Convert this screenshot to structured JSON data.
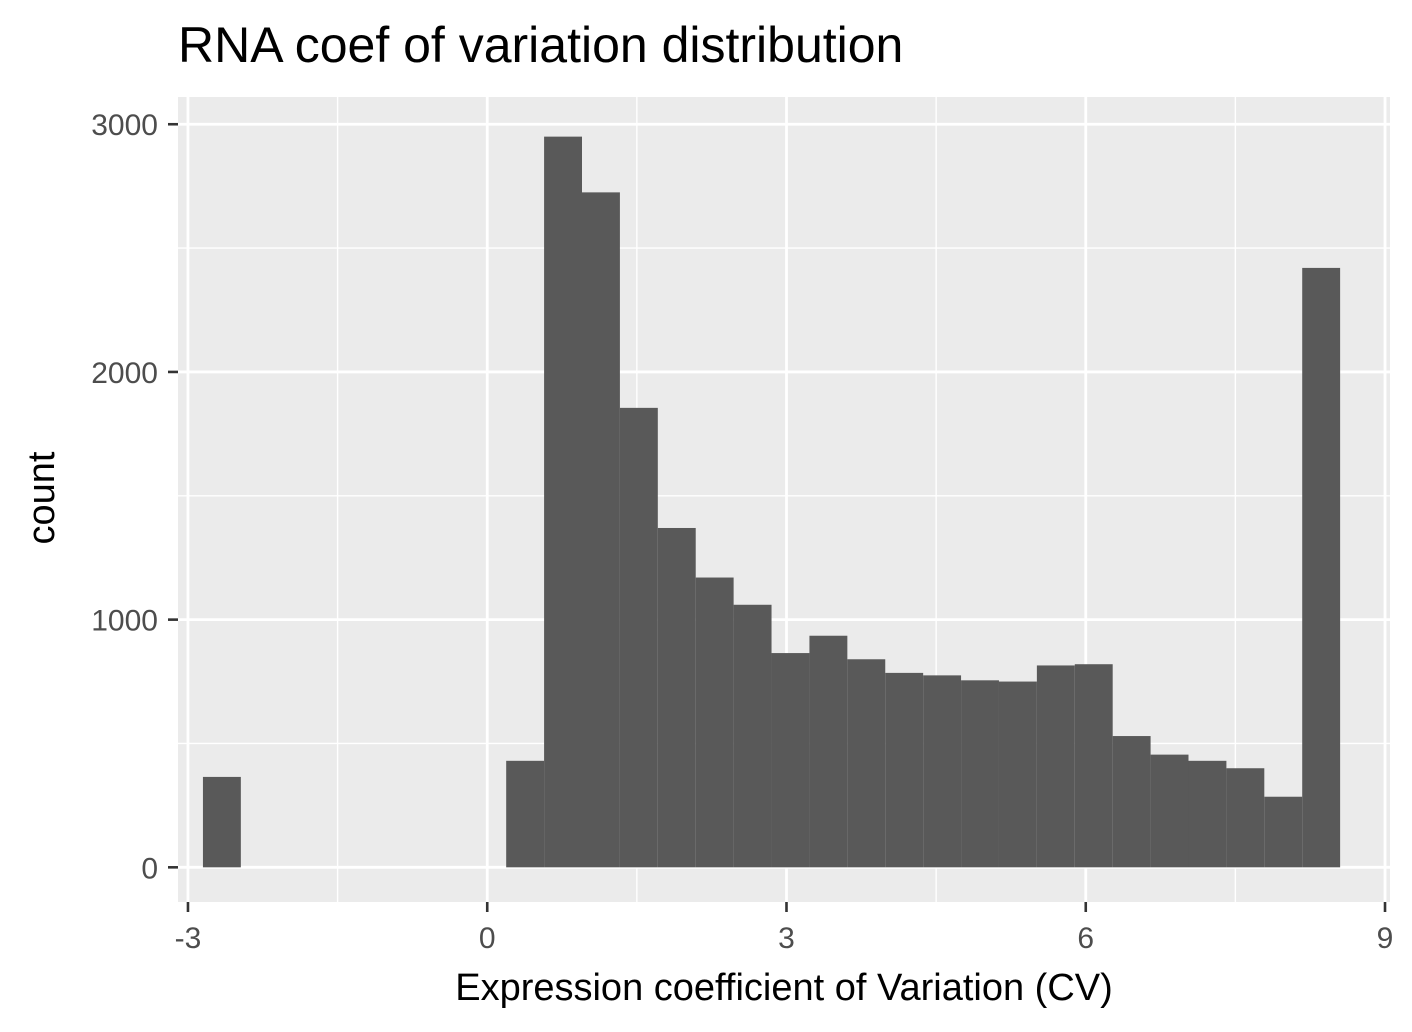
{
  "chart_data": {
    "type": "bar",
    "title": "RNA coef of variation distribution",
    "xlabel": "Expression coefficient of Variation (CV)",
    "ylabel": "count",
    "xlim": [
      -3.1,
      9.05
    ],
    "ylim": [
      -140,
      3110
    ],
    "x_ticks": [
      "-3",
      "0",
      "3",
      "6",
      "9"
    ],
    "x_tick_values": [
      -3,
      0,
      3,
      6,
      9
    ],
    "y_ticks": [
      "0",
      "1000",
      "2000",
      "3000"
    ],
    "y_tick_values": [
      0,
      1000,
      2000,
      3000
    ],
    "grid": true,
    "bar_color": "#595959",
    "panel_color": "#ebebeb",
    "grid_color": "#ffffff",
    "bin_width": 0.38,
    "bins": [
      {
        "x0": -2.85,
        "x1": -2.47,
        "count": 365
      },
      {
        "x0": 0.19,
        "x1": 0.57,
        "count": 430
      },
      {
        "x0": 0.57,
        "x1": 0.95,
        "count": 2950
      },
      {
        "x0": 0.95,
        "x1": 1.33,
        "count": 2725
      },
      {
        "x0": 1.33,
        "x1": 1.71,
        "count": 1855
      },
      {
        "x0": 1.71,
        "x1": 2.09,
        "count": 1370
      },
      {
        "x0": 2.09,
        "x1": 2.47,
        "count": 1170
      },
      {
        "x0": 2.47,
        "x1": 2.85,
        "count": 1060
      },
      {
        "x0": 2.85,
        "x1": 3.23,
        "count": 865
      },
      {
        "x0": 3.23,
        "x1": 3.61,
        "count": 935
      },
      {
        "x0": 3.61,
        "x1": 3.99,
        "count": 840
      },
      {
        "x0": 3.99,
        "x1": 4.37,
        "count": 785
      },
      {
        "x0": 4.37,
        "x1": 4.75,
        "count": 775
      },
      {
        "x0": 4.75,
        "x1": 5.13,
        "count": 755
      },
      {
        "x0": 5.13,
        "x1": 5.51,
        "count": 750
      },
      {
        "x0": 5.51,
        "x1": 5.89,
        "count": 815
      },
      {
        "x0": 5.89,
        "x1": 6.27,
        "count": 820
      },
      {
        "x0": 6.27,
        "x1": 6.65,
        "count": 530
      },
      {
        "x0": 6.65,
        "x1": 7.03,
        "count": 455
      },
      {
        "x0": 7.03,
        "x1": 7.41,
        "count": 430
      },
      {
        "x0": 7.41,
        "x1": 7.79,
        "count": 400
      },
      {
        "x0": 7.79,
        "x1": 8.17,
        "count": 285
      },
      {
        "x0": 8.17,
        "x1": 8.55,
        "count": 2420
      }
    ]
  }
}
